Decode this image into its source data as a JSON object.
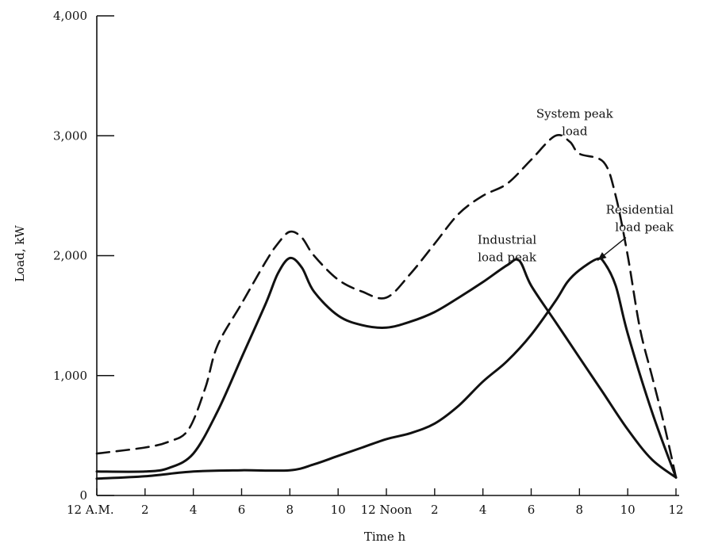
{
  "chart_data": {
    "type": "line",
    "title": "",
    "xlabel": "Time h",
    "ylabel": "Load, kW",
    "xlim": [
      0,
      24
    ],
    "ylim": [
      0,
      4000
    ],
    "grid": false,
    "legend": "none",
    "x_ticks": [
      {
        "x": 0,
        "label": "12 A.M."
      },
      {
        "x": 2,
        "label": "2"
      },
      {
        "x": 4,
        "label": "4"
      },
      {
        "x": 6,
        "label": "6"
      },
      {
        "x": 8,
        "label": "8"
      },
      {
        "x": 10,
        "label": "10"
      },
      {
        "x": 12,
        "label": "12 Noon"
      },
      {
        "x": 14,
        "label": "2"
      },
      {
        "x": 16,
        "label": "4"
      },
      {
        "x": 18,
        "label": "6"
      },
      {
        "x": 20,
        "label": "8"
      },
      {
        "x": 22,
        "label": "10"
      },
      {
        "x": 24,
        "label": "12"
      }
    ],
    "y_ticks": [
      {
        "y": 0,
        "label": "0"
      },
      {
        "y": 1000,
        "label": "1,000"
      },
      {
        "y": 2000,
        "label": "2,000"
      },
      {
        "y": 3000,
        "label": "3,000"
      },
      {
        "y": 4000,
        "label": "4,000"
      }
    ],
    "series": [
      {
        "style": "dashed",
        "x": [
          0,
          2,
          3,
          3.8,
          4.5,
          5,
          6,
          7,
          7.5,
          8,
          8.5,
          9,
          10,
          11,
          12,
          13,
          14,
          15,
          16,
          17,
          18,
          19,
          19.6,
          20,
          21,
          21.5,
          22,
          22.5,
          23,
          23.5,
          24
        ],
        "values": [
          350,
          400,
          450,
          550,
          900,
          1250,
          1600,
          1950,
          2100,
          2200,
          2150,
          2000,
          1800,
          1700,
          1650,
          1850,
          2100,
          2350,
          2500,
          2600,
          2800,
          3000,
          2950,
          2850,
          2780,
          2500,
          2000,
          1400,
          1000,
          600,
          150
        ]
      },
      {
        "style": "solid",
        "x": [
          0,
          2,
          3,
          4,
          5,
          6,
          7,
          7.5,
          8,
          8.5,
          9,
          10,
          11,
          12,
          13,
          14,
          15,
          16,
          17,
          17.5,
          18,
          19,
          20,
          21,
          22,
          23,
          24
        ],
        "values": [
          200,
          200,
          230,
          350,
          700,
          1150,
          1600,
          1850,
          1980,
          1900,
          1700,
          1500,
          1420,
          1400,
          1450,
          1530,
          1650,
          1780,
          1920,
          1960,
          1750,
          1450,
          1150,
          850,
          550,
          300,
          150
        ]
      },
      {
        "style": "solid",
        "x": [
          0,
          2,
          4,
          6,
          8,
          9,
          10,
          11,
          12,
          13,
          14,
          15,
          16,
          17,
          18,
          19,
          19.5,
          20,
          20.7,
          21,
          21.5,
          22,
          23,
          24
        ],
        "values": [
          140,
          160,
          200,
          210,
          210,
          260,
          330,
          400,
          470,
          520,
          600,
          750,
          950,
          1120,
          1340,
          1620,
          1780,
          1880,
          1970,
          1950,
          1750,
          1350,
          700,
          150
        ]
      }
    ],
    "annotations": [
      {
        "lines": [
          "System peak",
          "load"
        ],
        "x": 19.8,
        "y": 3150,
        "align": "middle"
      },
      {
        "lines": [
          "Industrial",
          "load peak"
        ],
        "x": 17,
        "y": 2100,
        "align": "middle"
      },
      {
        "lines": [
          "Residential",
          "load peak"
        ],
        "x": 23.9,
        "y": 2350,
        "align": "end",
        "arrow_to": {
          "x": 20.75,
          "y": 1960
        }
      }
    ]
  }
}
